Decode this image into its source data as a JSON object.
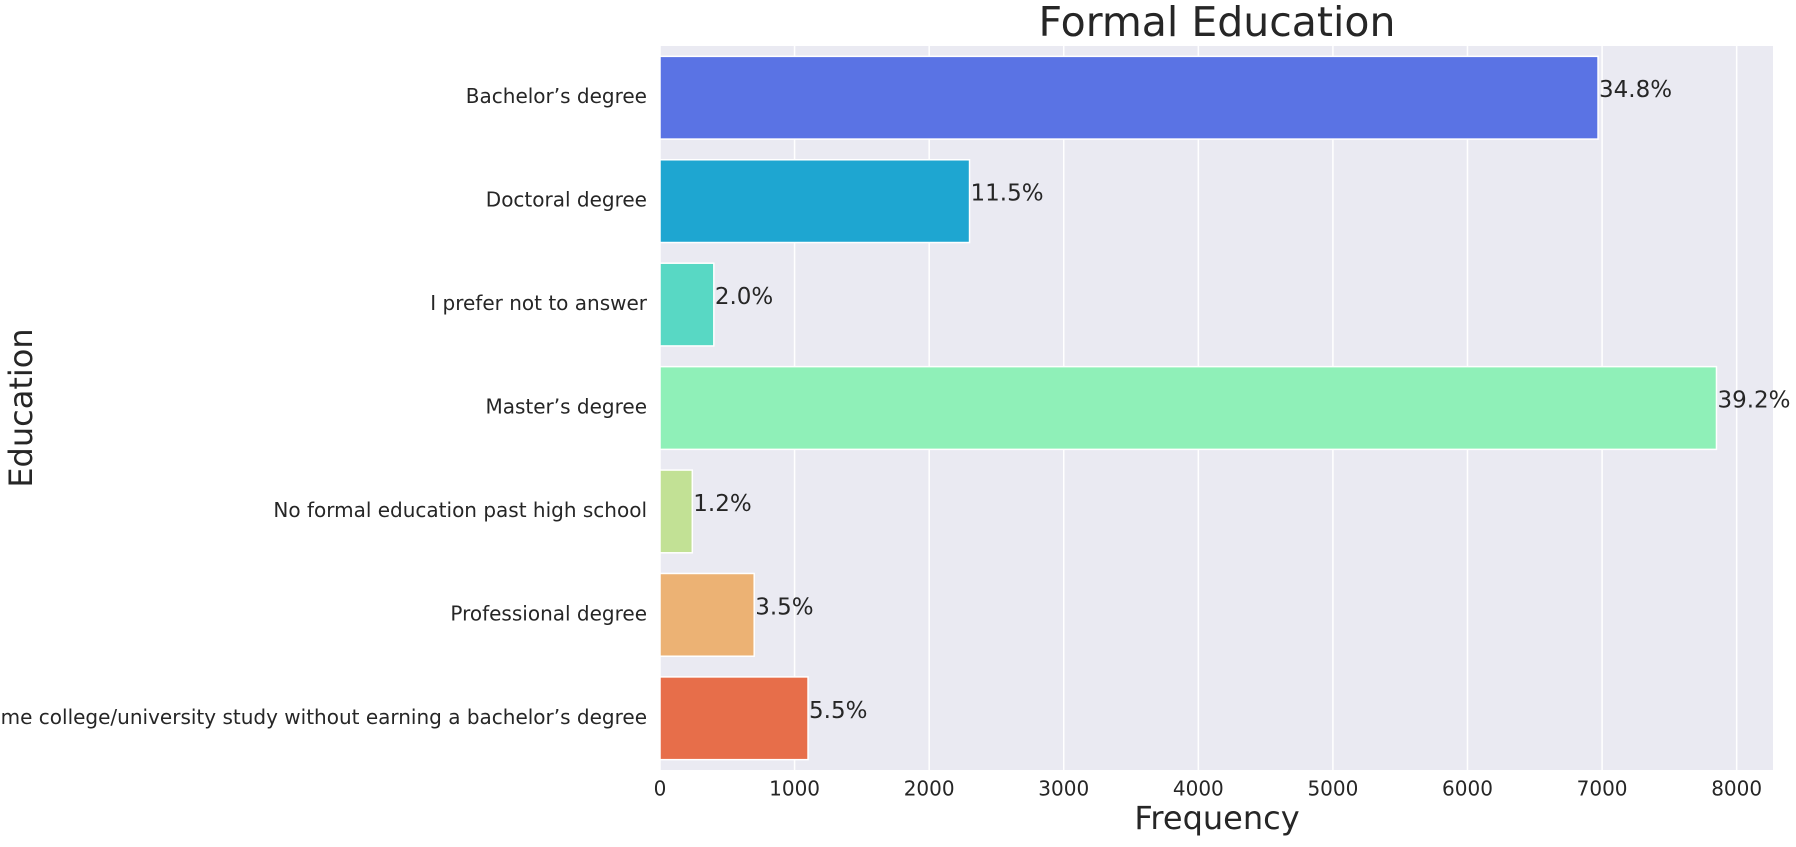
{
  "chart_data": {
    "type": "barh",
    "title": "Formal Education",
    "xlabel": "Frequency",
    "ylabel": "Education",
    "categories": [
      "Bachelor’s degree",
      "Doctoral degree",
      "I prefer not to answer",
      "Master’s degree",
      "No formal education past high school",
      "Professional degree",
      "Some college/university study without earning a bachelor’s degree"
    ],
    "values": [
      6970,
      2300,
      400,
      7850,
      240,
      700,
      1100
    ],
    "colors": [
      "#5a73e4",
      "#1ea6d1",
      "#58d8c4",
      "#8ff0b8",
      "#c2e195",
      "#ecb274",
      "#e76e4a"
    ],
    "annotations": [
      "34.8%",
      "11.5%",
      "2.0%",
      "39.2%",
      "1.2%",
      "3.5%",
      "5.5%"
    ],
    "xlim": [
      0,
      8270
    ],
    "xticks": [
      0,
      1000,
      2000,
      3000,
      4000,
      5000,
      6000,
      7000,
      8000
    ],
    "grid": true
  }
}
